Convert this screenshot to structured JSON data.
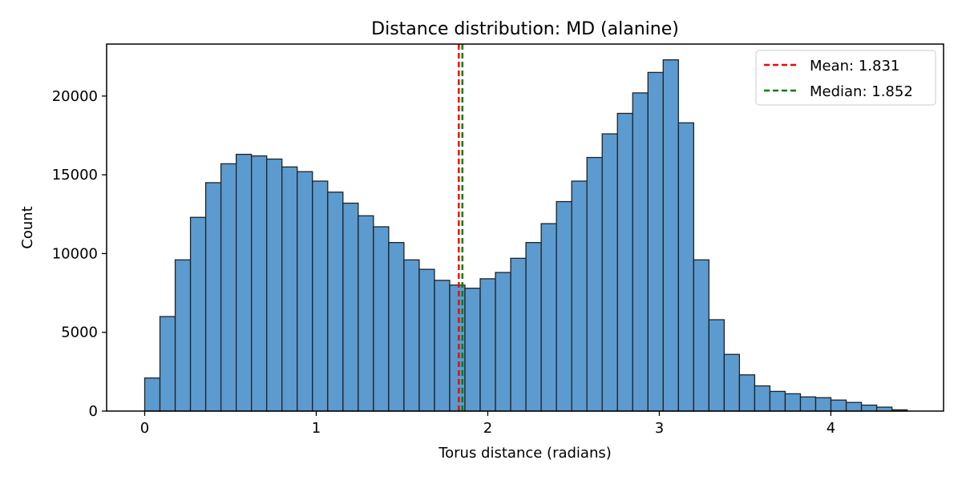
{
  "chart_data": {
    "type": "bar",
    "title": "Distance distribution: MD (alanine)",
    "xlabel": "Torus distance (radians)",
    "ylabel": "Count",
    "xlim": [
      -0.222,
      4.657
    ],
    "ylim": [
      0,
      23300
    ],
    "xticks": [
      0,
      1,
      2,
      3,
      4
    ],
    "yticks": [
      0,
      5000,
      10000,
      15000,
      20000
    ],
    "bin_width": 0.0889,
    "bin_edges_start": 0,
    "counts": [
      2100,
      6000,
      9600,
      12300,
      14500,
      15700,
      16300,
      16200,
      16000,
      15500,
      15200,
      14600,
      13900,
      13200,
      12400,
      11700,
      10700,
      9600,
      9000,
      8300,
      8000,
      7800,
      8400,
      8800,
      9700,
      10700,
      11900,
      13300,
      14600,
      16100,
      17600,
      18900,
      20200,
      21500,
      22300,
      18300,
      9600,
      5800,
      3600,
      2300,
      1600,
      1250,
      1100,
      900,
      850,
      700,
      550,
      380,
      250,
      80
    ],
    "bar_color": "#5b9bd0",
    "bar_edge_color": "#222222",
    "mean": {
      "value": 1.831,
      "label": "Mean: 1.831",
      "color": "#ff0000"
    },
    "median": {
      "value": 1.852,
      "label": "Median: 1.852",
      "color": "#008000"
    },
    "legend": {
      "placement": "top-right",
      "entries": [
        "Mean: 1.831",
        "Median: 1.852"
      ]
    },
    "grid": false
  }
}
